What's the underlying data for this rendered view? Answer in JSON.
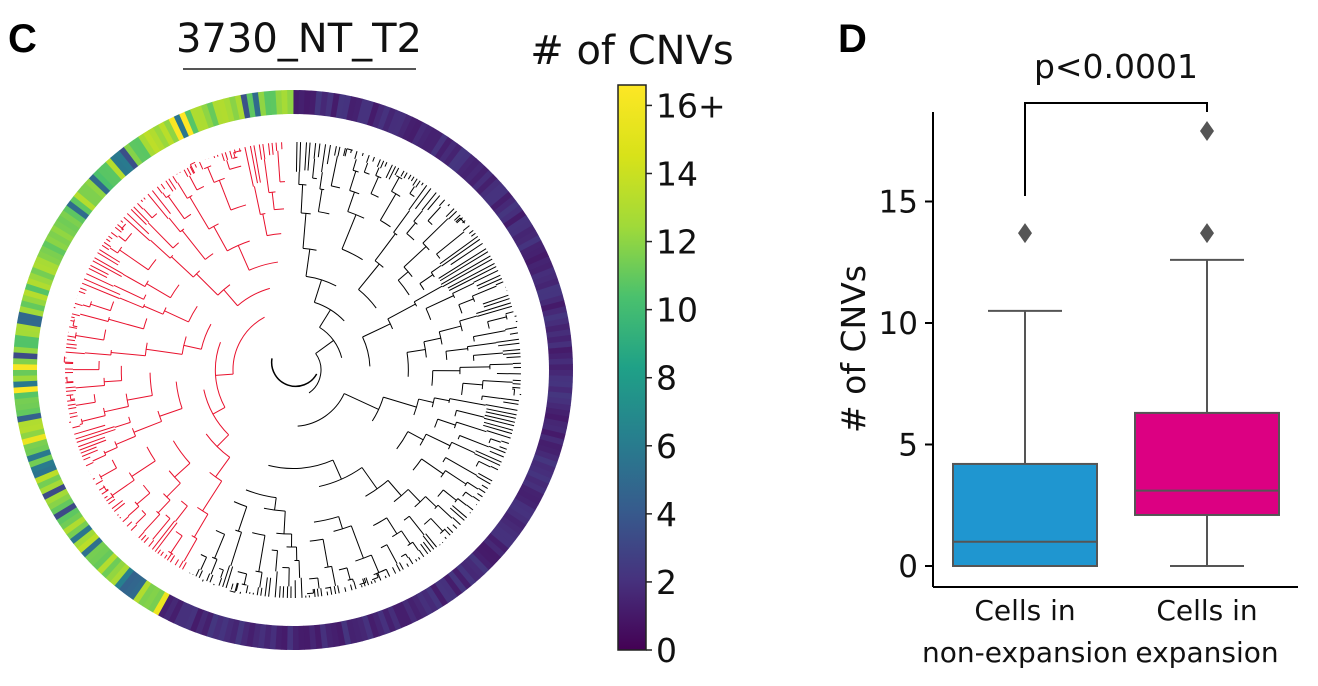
{
  "panels": {
    "left_letter": "C",
    "right_letter": "D"
  },
  "tree_panel": {
    "title": "3730_NT_T2",
    "colorbar_title": "# of CNVs",
    "colorbar_ticks": [
      "0",
      "2",
      "4",
      "6",
      "8",
      "10",
      "12",
      "14",
      "16+"
    ],
    "colorbar_range": [
      0,
      16.6
    ],
    "colormap": "viridis",
    "expansion_color": "#e8112d",
    "nonexpansion_color": "#000000"
  },
  "chart_data": {
    "type": "box",
    "title": "",
    "ylabel": "# of CNVs",
    "xlabel": "",
    "ylim": [
      -0.8,
      18.6
    ],
    "yticks": [
      0,
      5,
      10,
      15
    ],
    "categories": [
      [
        "Cells in",
        "non-expansion"
      ],
      [
        "Cells in",
        "expansion"
      ]
    ],
    "boxes": [
      {
        "color": "#1f96d0",
        "whisker_low": 0,
        "q1": 0,
        "median": 1,
        "q3": 4.2,
        "whisker_high": 10.5,
        "outliers": [
          13.7
        ]
      },
      {
        "color": "#dc0082",
        "whisker_low": 0,
        "q1": 2.1,
        "median": 3.1,
        "q3": 6.3,
        "whisker_high": 12.6,
        "outliers": [
          13.7,
          17.9
        ]
      }
    ],
    "significance": {
      "label": "p<0.0001",
      "from": 0,
      "to": 1
    }
  }
}
